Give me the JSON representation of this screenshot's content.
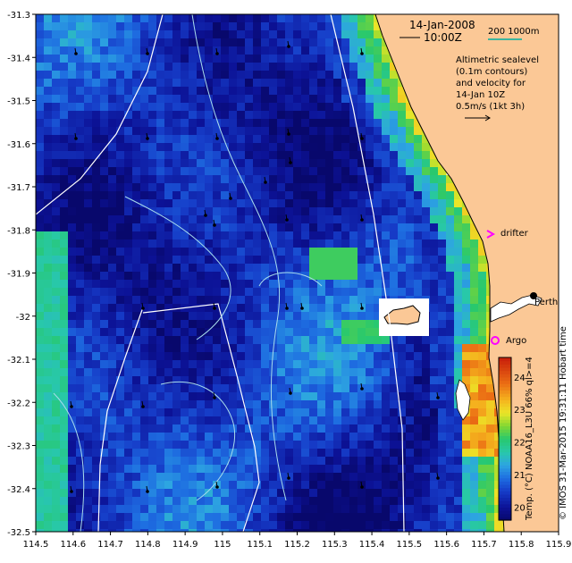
{
  "map": {
    "date": "14-Jan-2008",
    "time": "10:00Z",
    "scale_label": "200  1000m",
    "description_lines": [
      "Altimetric sealevel",
      "(0.1m contours)",
      "and velocity for",
      "14-Jan 10Z",
      "0.5m/s (1kt 3h)"
    ],
    "labels": {
      "drifter": "drifter",
      "argo": "Argo",
      "perth": "Perth"
    },
    "lon_ticks": [
      "114.5",
      "114.6",
      "114.7",
      "114.8",
      "114.9",
      "115",
      "115.1",
      "115.2",
      "115.3",
      "115.4",
      "115.5",
      "115.6",
      "115.7",
      "115.8",
      "115.9"
    ],
    "lat_ticks": [
      "-31.3",
      "-31.4",
      "-31.5",
      "-31.6",
      "-31.7",
      "-31.8",
      "-31.9",
      "-32",
      "-32.1",
      "-32.2",
      "-32.3",
      "-32.4",
      "-32.5"
    ],
    "lon_range": [
      114.5,
      115.9
    ],
    "lat_range": [
      -32.5,
      -31.3
    ]
  },
  "colorbar": {
    "ticks": [
      "20",
      "21",
      "22",
      "23",
      "24"
    ],
    "range": [
      19.6,
      24.6
    ],
    "label": "Temp. (°C) NOAA16_L3U 66% ql>=4"
  },
  "credit": "© IMOS 31-Mar-2015 19:31:11 Hobart time",
  "colors": {
    "land": "#fbc896",
    "track": "#ffffff",
    "contour": "#a8dcec",
    "drifter": "#ff00ff"
  }
}
